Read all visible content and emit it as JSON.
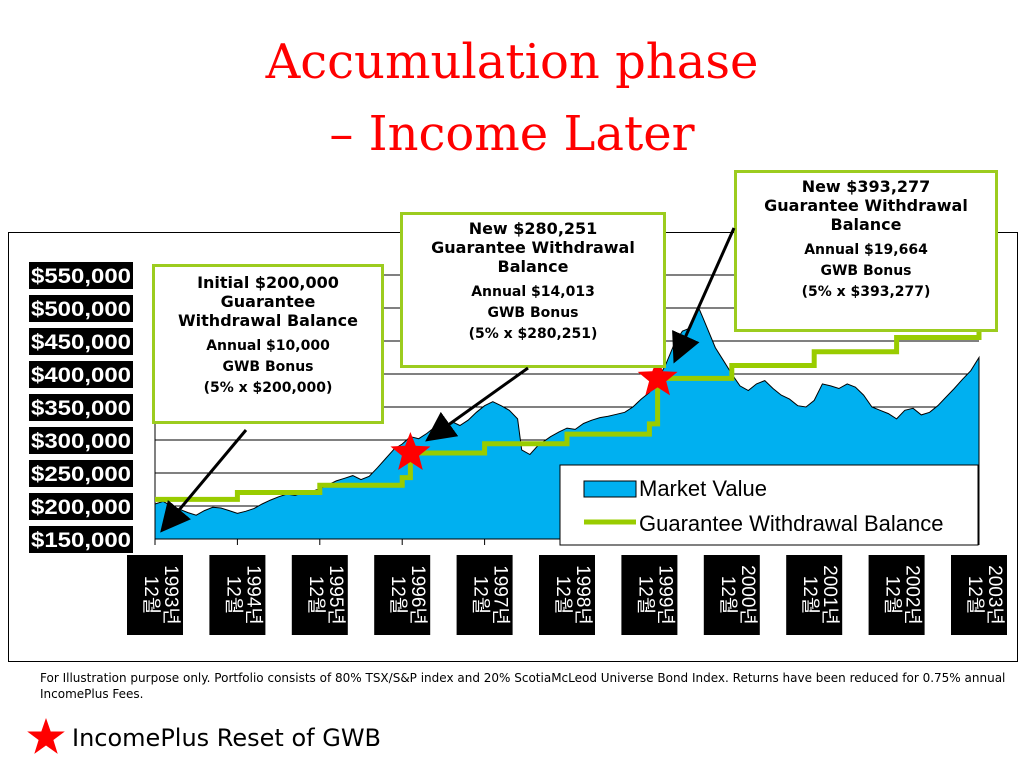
{
  "slide": {
    "title_line1": "Accumulation phase",
    "title_line2": "– Income Later"
  },
  "callouts": [
    {
      "lines": [
        "Initial $200,000",
        "Guarantee",
        "Withdrawal Balance"
      ],
      "sub": [
        "Annual $10,000",
        "GWB Bonus",
        "(5% x $200,000)"
      ]
    },
    {
      "lines": [
        "New $280,251",
        "Guarantee Withdrawal",
        "Balance"
      ],
      "sub": [
        "Annual $14,013",
        "GWB Bonus",
        "(5% x $280,251)"
      ]
    },
    {
      "lines": [
        "New $393,277",
        "Guarantee Withdrawal",
        "Balance"
      ],
      "sub": [
        "Annual $19,664",
        "GWB Bonus",
        "(5% x $393,277)"
      ]
    }
  ],
  "footnote": "For Illustration purpose only. Portfolio consists of 80% TSX/S&P index and 20% ScotiaMcLeod Universe Bond Index. Returns have been reduced for 0.75% annual IncomePlus Fees.",
  "legend_bottom": {
    "icon": "red-star-icon",
    "label": "IncomePlus Reset of GWB"
  },
  "colors": {
    "title": "#ff0000",
    "market": "#00b0f0",
    "gwb": "#99cc00",
    "callout_border": "#9ccc1f",
    "star": "#ff0000"
  },
  "chart_data": {
    "type": "area",
    "y_tick_labels": [
      "$550,000",
      "$500,000",
      "$450,000",
      "$400,000",
      "$350,000",
      "$300,000",
      "$250,000",
      "$200,000",
      "$150,000"
    ],
    "y_ticks": [
      550000,
      500000,
      450000,
      400000,
      350000,
      300000,
      250000,
      200000,
      150000
    ],
    "ylim": [
      150000,
      550000
    ],
    "x_labels": [
      "1993년 12월",
      "1994년 12월",
      "1995년 12월",
      "1996년 12월",
      "1997년 12월",
      "1998년 12월",
      "1999년 12월",
      "2000년 12월",
      "2001년 12월",
      "2002년 12월",
      "2003년 12월"
    ],
    "xlim": [
      1993.9,
      2003.9
    ],
    "legend": {
      "placement": "bottom-right",
      "entries": [
        "Market Value",
        "Guarantee Withdrawal Balance"
      ]
    },
    "series": [
      {
        "name": "Market Value",
        "type": "area",
        "points": [
          [
            1993.9,
            203000
          ],
          [
            1994.0,
            207000
          ],
          [
            1994.1,
            200000
          ],
          [
            1994.2,
            195000
          ],
          [
            1994.3,
            190000
          ],
          [
            1994.4,
            186000
          ],
          [
            1994.5,
            193000
          ],
          [
            1994.6,
            198000
          ],
          [
            1994.7,
            197000
          ],
          [
            1994.8,
            193000
          ],
          [
            1994.9,
            189000
          ],
          [
            1995.0,
            192000
          ],
          [
            1995.1,
            196000
          ],
          [
            1995.2,
            203000
          ],
          [
            1995.3,
            209000
          ],
          [
            1995.4,
            214000
          ],
          [
            1995.5,
            218000
          ],
          [
            1995.6,
            216000
          ],
          [
            1995.7,
            220000
          ],
          [
            1995.8,
            222000
          ],
          [
            1995.9,
            226000
          ],
          [
            1996.0,
            232000
          ],
          [
            1996.1,
            238000
          ],
          [
            1996.2,
            242000
          ],
          [
            1996.3,
            246000
          ],
          [
            1996.4,
            240000
          ],
          [
            1996.5,
            245000
          ],
          [
            1996.6,
            258000
          ],
          [
            1996.7,
            272000
          ],
          [
            1996.8,
            286000
          ],
          [
            1996.9,
            294000
          ],
          [
            1997.0,
            305000
          ],
          [
            1997.1,
            302000
          ],
          [
            1997.2,
            310000
          ],
          [
            1997.3,
            320000
          ],
          [
            1997.4,
            316000
          ],
          [
            1997.5,
            328000
          ],
          [
            1997.6,
            322000
          ],
          [
            1997.7,
            330000
          ],
          [
            1997.8,
            342000
          ],
          [
            1997.9,
            352000
          ],
          [
            1998.0,
            358000
          ],
          [
            1998.1,
            352000
          ],
          [
            1998.2,
            345000
          ],
          [
            1998.3,
            332000
          ],
          [
            1998.35,
            285000
          ],
          [
            1998.45,
            278000
          ],
          [
            1998.55,
            292000
          ],
          [
            1998.7,
            305000
          ],
          [
            1998.8,
            312000
          ],
          [
            1998.9,
            318000
          ],
          [
            1999.0,
            316000
          ],
          [
            1999.1,
            325000
          ],
          [
            1999.2,
            330000
          ],
          [
            1999.3,
            334000
          ],
          [
            1999.4,
            336000
          ],
          [
            1999.5,
            339000
          ],
          [
            1999.6,
            342000
          ],
          [
            1999.7,
            350000
          ],
          [
            1999.8,
            362000
          ],
          [
            1999.9,
            372000
          ],
          [
            2000.0,
            390000
          ],
          [
            2000.1,
            415000
          ],
          [
            2000.2,
            445000
          ],
          [
            2000.3,
            465000
          ],
          [
            2000.4,
            470000
          ],
          [
            2000.5,
            500000
          ],
          [
            2000.55,
            485000
          ],
          [
            2000.6,
            470000
          ],
          [
            2000.7,
            440000
          ],
          [
            2000.8,
            420000
          ],
          [
            2000.9,
            400000
          ],
          [
            2001.0,
            382000
          ],
          [
            2001.1,
            375000
          ],
          [
            2001.2,
            385000
          ],
          [
            2001.3,
            390000
          ],
          [
            2001.4,
            378000
          ],
          [
            2001.5,
            368000
          ],
          [
            2001.6,
            362000
          ],
          [
            2001.7,
            352000
          ],
          [
            2001.8,
            350000
          ],
          [
            2001.9,
            360000
          ],
          [
            2002.0,
            385000
          ],
          [
            2002.1,
            382000
          ],
          [
            2002.2,
            378000
          ],
          [
            2002.3,
            385000
          ],
          [
            2002.4,
            380000
          ],
          [
            2002.5,
            368000
          ],
          [
            2002.6,
            350000
          ],
          [
            2002.7,
            345000
          ],
          [
            2002.8,
            340000
          ],
          [
            2002.9,
            332000
          ],
          [
            2003.0,
            345000
          ],
          [
            2003.1,
            348000
          ],
          [
            2003.2,
            338000
          ],
          [
            2003.3,
            342000
          ],
          [
            2003.4,
            352000
          ],
          [
            2003.5,
            365000
          ],
          [
            2003.6,
            378000
          ],
          [
            2003.7,
            392000
          ],
          [
            2003.8,
            405000
          ],
          [
            2003.9,
            425000
          ]
        ]
      },
      {
        "name": "Guarantee Withdrawal Balance",
        "type": "step",
        "points": [
          [
            1993.9,
            210000
          ],
          [
            1994.9,
            220500
          ],
          [
            1995.9,
            231525
          ],
          [
            1996.9,
            243101
          ],
          [
            1997.0,
            280251
          ],
          [
            1997.9,
            294264
          ],
          [
            1998.9,
            308977
          ],
          [
            1999.9,
            324426
          ],
          [
            2000.0,
            393277
          ],
          [
            2000.9,
            412941
          ],
          [
            2001.9,
            433588
          ],
          [
            2002.9,
            455267
          ],
          [
            2003.9,
            478031
          ]
        ]
      }
    ],
    "reset_markers": [
      [
        1997.0,
        280251
      ],
      [
        2000.0,
        393277
      ]
    ]
  }
}
